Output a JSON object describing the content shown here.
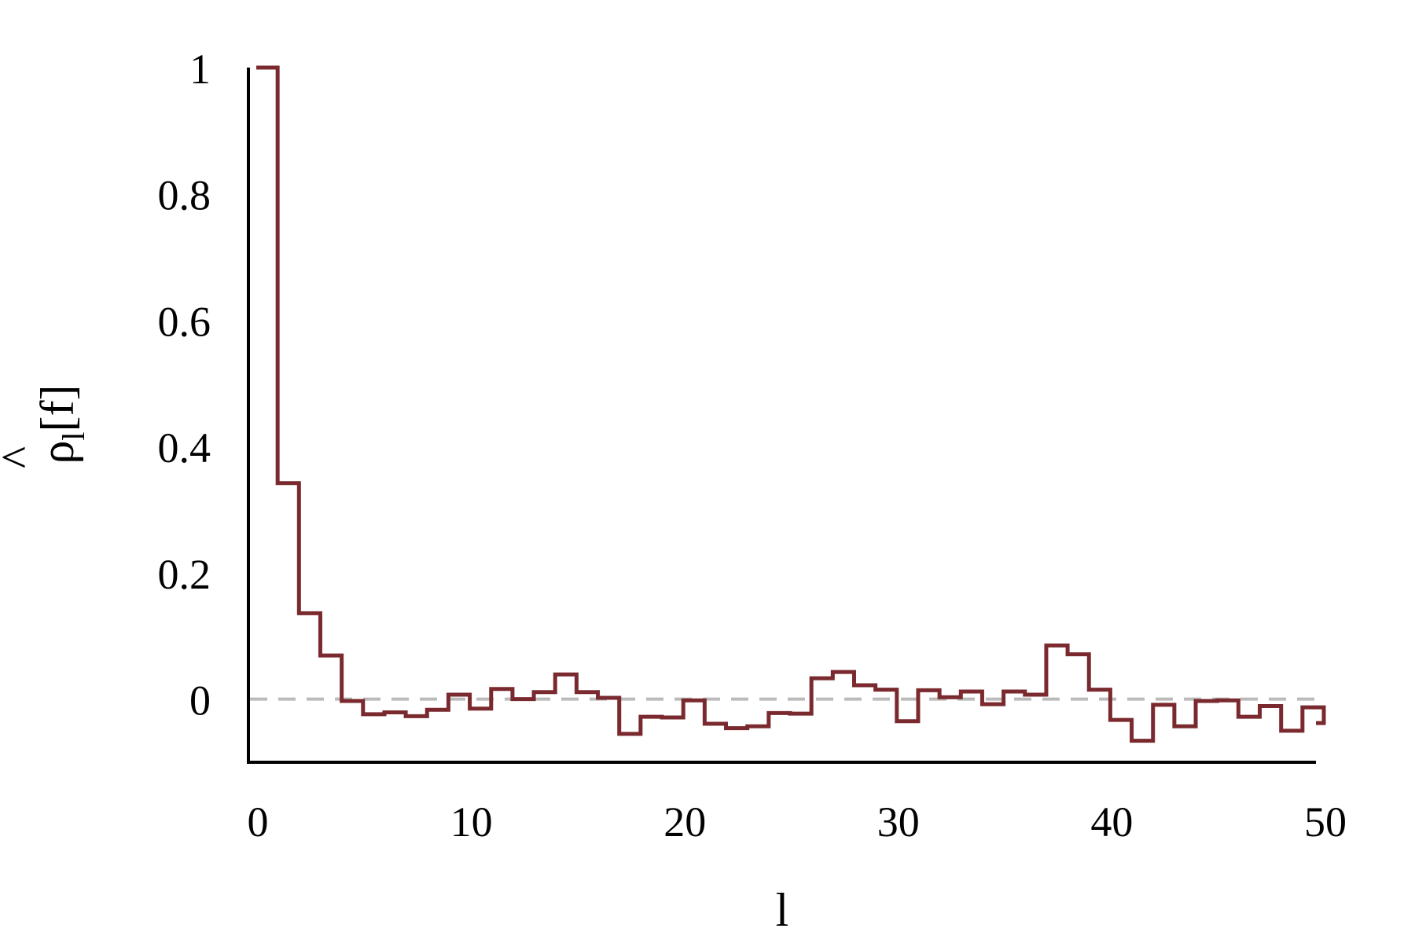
{
  "chart_data": {
    "type": "line",
    "step": true,
    "title": "",
    "xlabel": "l",
    "ylabel": "ρ̂l[f]",
    "ylabel_parts": {
      "hat": "^",
      "main": "ρ",
      "sub": "l",
      "suffix": "[f]"
    },
    "xlim": [
      0,
      50
    ],
    "ylim": [
      -0.1,
      1
    ],
    "xticks": [
      0,
      10,
      20,
      30,
      40,
      50
    ],
    "yticks": [
      0,
      0.2,
      0.4,
      0.6,
      0.8,
      1
    ],
    "xtick_labels": [
      "0",
      "10",
      "20",
      "30",
      "40",
      "50"
    ],
    "ytick_labels": [
      "0",
      "0.2",
      "0.4",
      "0.6",
      "0.8",
      "1"
    ],
    "grid": false,
    "reference_line": {
      "y": 0,
      "style": "dashed",
      "color": "#bbbbbb"
    },
    "series": [
      {
        "color": "#7a2a2e",
        "x": [
          0,
          1,
          2,
          3,
          4,
          5,
          6,
          7,
          8,
          9,
          10,
          11,
          12,
          13,
          14,
          15,
          16,
          17,
          18,
          19,
          20,
          21,
          22,
          23,
          24,
          25,
          26,
          27,
          28,
          29,
          30,
          31,
          32,
          33,
          34,
          35,
          36,
          37,
          38,
          39,
          40,
          41,
          42,
          43,
          44,
          45,
          46,
          47,
          48,
          49,
          50
        ],
        "values": [
          1.0,
          0.342,
          0.136,
          0.069,
          -0.003,
          -0.024,
          -0.021,
          -0.027,
          -0.017,
          0.007,
          -0.015,
          0.016,
          0.0,
          0.011,
          0.039,
          0.011,
          0.002,
          -0.055,
          -0.028,
          -0.029,
          -0.002,
          -0.039,
          -0.046,
          -0.043,
          -0.022,
          -0.023,
          0.033,
          0.043,
          0.022,
          0.015,
          -0.035,
          0.014,
          0.003,
          0.012,
          -0.008,
          0.012,
          0.007,
          0.085,
          0.071,
          0.015,
          -0.033,
          -0.066,
          -0.009,
          -0.043,
          -0.003,
          -0.002,
          -0.028,
          -0.011,
          -0.05,
          -0.013,
          -0.038
        ]
      }
    ]
  }
}
